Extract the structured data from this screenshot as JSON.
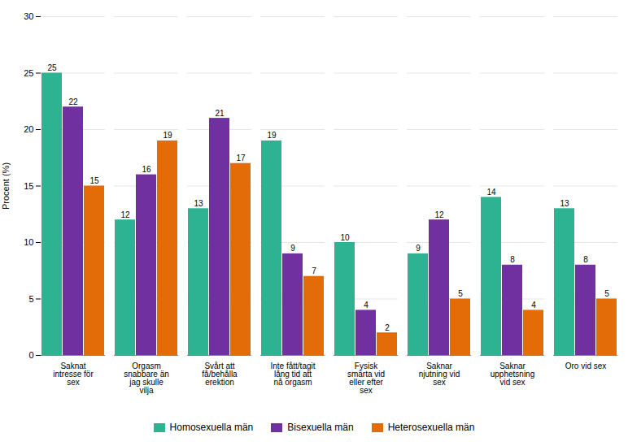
{
  "chart_data": {
    "type": "bar",
    "categories": [
      "Saknat\nintresse för\nsex",
      "Orgasm\nsnabbare än\njag skulle\nvilja",
      "Svårt att\nfå/behålla\nerektion",
      "Inte fått/tagit\nlång tid att\nnå orgasm",
      "Fysisk\nsmärta vid\neller efter\nsex",
      "Saknar\nnjutning vid\nsex",
      "Saknar\nupphetsning\nvid sex",
      "Oro vid sex"
    ],
    "series": [
      {
        "name": "Homosexuella män",
        "color": "#2db391",
        "values": [
          25,
          12,
          13,
          19,
          10,
          9,
          14,
          13
        ]
      },
      {
        "name": "Bisexuella män",
        "color": "#7030a0",
        "values": [
          22,
          16,
          21,
          9,
          4,
          12,
          8,
          8
        ]
      },
      {
        "name": "Heterosexuella män",
        "color": "#e36c09",
        "values": [
          15,
          19,
          17,
          7,
          2,
          5,
          4,
          5
        ]
      }
    ],
    "ylabel": "Procent (%)",
    "ylim": [
      0,
      30
    ],
    "yticks": [
      0,
      5,
      10,
      15,
      20,
      25,
      30
    ],
    "grid": true,
    "data_labels": true,
    "legend": "bottom"
  }
}
